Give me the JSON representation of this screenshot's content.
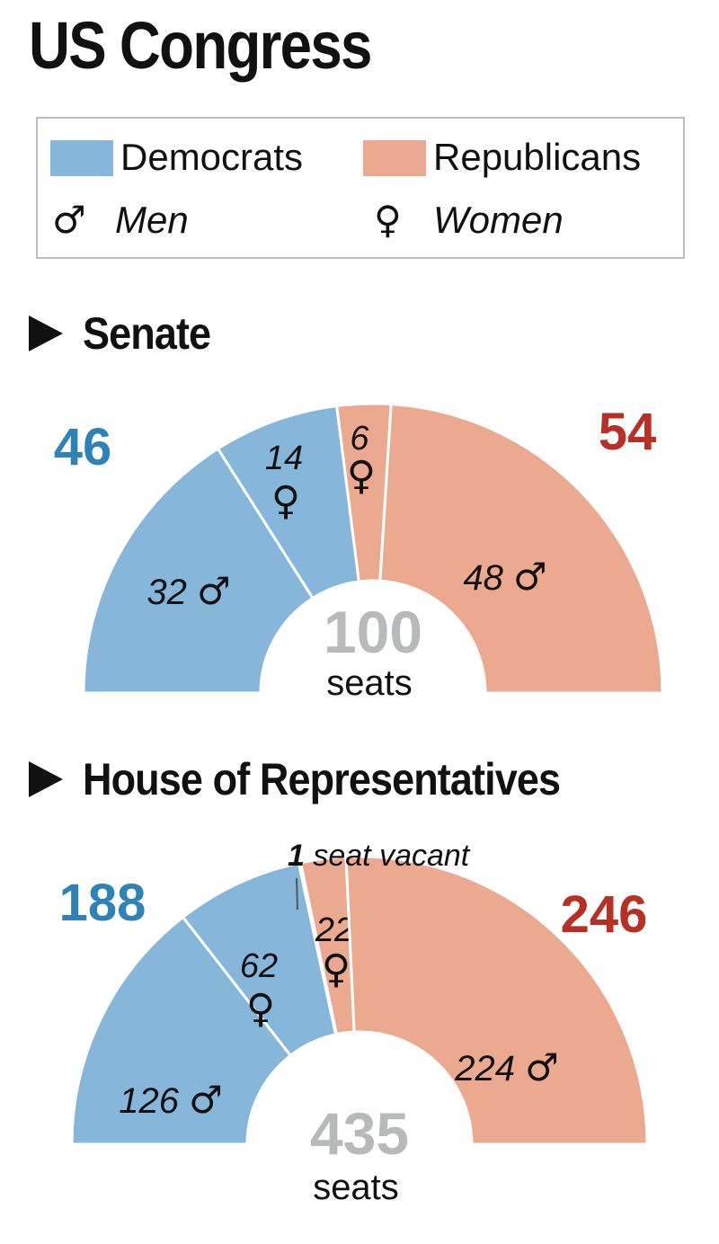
{
  "title": "US Congress",
  "legend": {
    "democrats": {
      "label": "Democrats",
      "color": "#86b7db"
    },
    "republicans": {
      "label": "Republicans",
      "color": "#eba990"
    },
    "men": {
      "label": "Men",
      "symbol": "♂"
    },
    "women": {
      "label": "Women",
      "symbol": "♀"
    }
  },
  "chart_data": [
    {
      "type": "pie",
      "title": "Senate",
      "total": 100,
      "total_unit": "seats",
      "party_totals": [
        {
          "party": "Democrats",
          "value": 46,
          "color": "#2d82b8"
        },
        {
          "party": "Republicans",
          "value": 54,
          "color": "#b83024"
        }
      ],
      "slices": [
        {
          "party": "Democrats",
          "gender": "Men",
          "value": 32,
          "label": "32",
          "symbol": "♂"
        },
        {
          "party": "Democrats",
          "gender": "Women",
          "value": 14,
          "label": "14",
          "symbol": "♀"
        },
        {
          "party": "Republicans",
          "gender": "Women",
          "value": 6,
          "label": "6",
          "symbol": "♀"
        },
        {
          "party": "Republicans",
          "gender": "Men",
          "value": 48,
          "label": "48",
          "symbol": "♂"
        }
      ]
    },
    {
      "type": "pie",
      "title": "House of Representatives",
      "total": 435,
      "total_unit": "seats",
      "party_totals": [
        {
          "party": "Democrats",
          "value": 188,
          "color": "#2d82b8"
        },
        {
          "party": "Republicans",
          "value": 246,
          "color": "#b83024"
        }
      ],
      "slices": [
        {
          "party": "Democrats",
          "gender": "Men",
          "value": 126,
          "label": "126",
          "symbol": "♂"
        },
        {
          "party": "Democrats",
          "gender": "Women",
          "value": 62,
          "label": "62",
          "symbol": "♀"
        },
        {
          "party": "Vacant",
          "gender": "",
          "value": 1,
          "label": "",
          "symbol": ""
        },
        {
          "party": "Republicans",
          "gender": "Women",
          "value": 22,
          "label": "22",
          "symbol": "♀"
        },
        {
          "party": "Republicans",
          "gender": "Men",
          "value": 224,
          "label": "224",
          "symbol": "♂"
        }
      ],
      "annotation": {
        "count": "1",
        "text": "seat vacant"
      }
    }
  ]
}
